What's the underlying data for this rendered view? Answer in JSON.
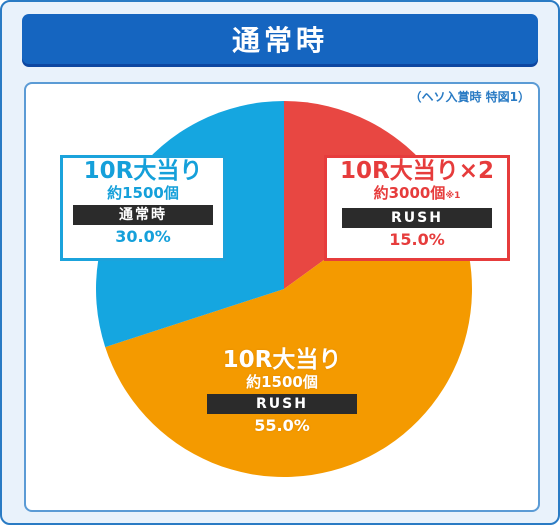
{
  "title": "通常時",
  "note": "（ヘソ入賞時 特図1）",
  "colors": {
    "blue": "#15a6e0",
    "red": "#e84742",
    "orange": "#f49a00"
  },
  "chart_data": {
    "type": "pie",
    "slices": [
      {
        "name": "10R大当り×2",
        "sub": "約3000個",
        "note_mark": "※1",
        "mode": "RUSH",
        "pct_label": "15.0%",
        "value": 15.0,
        "color": "#e84742"
      },
      {
        "name": "10R大当り",
        "sub": "約1500個",
        "note_mark": "",
        "mode": "RUSH",
        "pct_label": "55.0%",
        "value": 55.0,
        "color": "#f49a00"
      },
      {
        "name": "10R大当り",
        "sub": "約1500個",
        "note_mark": "",
        "mode": "通常時",
        "pct_label": "30.0%",
        "value": 30.0,
        "color": "#15a6e0"
      }
    ]
  }
}
